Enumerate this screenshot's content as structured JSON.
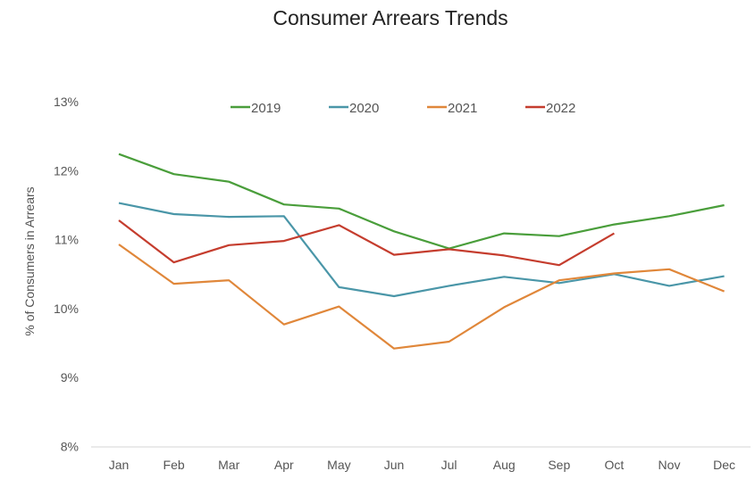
{
  "chart_data": {
    "type": "line",
    "title": "Consumer Arrears Trends",
    "xlabel": "",
    "ylabel": "% of Consumers in Arrears",
    "categories": [
      "Jan",
      "Feb",
      "Mar",
      "Apr",
      "May",
      "Jun",
      "Jul",
      "Aug",
      "Sep",
      "Oct",
      "Nov",
      "Dec"
    ],
    "ylim": [
      8,
      13
    ],
    "yticks": [
      8,
      9,
      10,
      11,
      12,
      13
    ],
    "ytick_labels": [
      "8%",
      "9%",
      "10%",
      "11%",
      "12%",
      "13%"
    ],
    "grid": false,
    "legend_position": "top-center",
    "series": [
      {
        "name": "2019",
        "color": "#4a9e3b",
        "values": [
          12.24,
          11.95,
          11.84,
          11.51,
          11.45,
          11.12,
          10.87,
          11.09,
          11.05,
          11.22,
          11.34,
          11.5
        ]
      },
      {
        "name": "2020",
        "color": "#4a96a8",
        "values": [
          11.53,
          11.37,
          11.33,
          11.34,
          10.31,
          10.18,
          10.33,
          10.46,
          10.37,
          10.5,
          10.33,
          10.47
        ]
      },
      {
        "name": "2021",
        "color": "#e0873a",
        "values": [
          10.93,
          10.36,
          10.41,
          9.77,
          10.03,
          9.42,
          9.52,
          10.02,
          10.41,
          10.51,
          10.57,
          10.25
        ]
      },
      {
        "name": "2022",
        "color": "#c53d2e",
        "values": [
          11.28,
          10.67,
          10.92,
          10.98,
          11.21,
          10.78,
          10.86,
          10.77,
          10.63,
          11.09
        ]
      }
    ]
  }
}
